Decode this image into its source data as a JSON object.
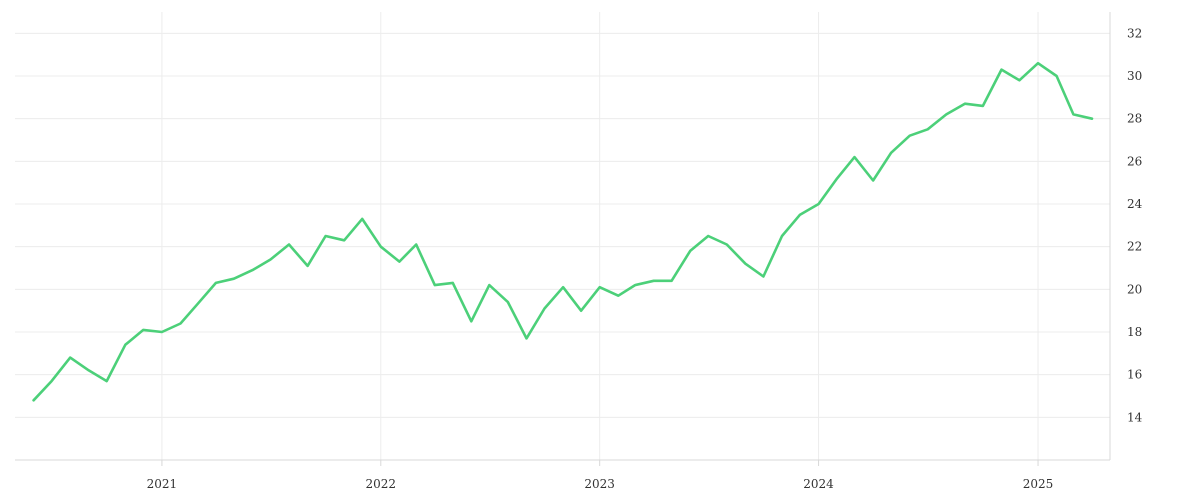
{
  "chart_data": {
    "type": "line",
    "title": "",
    "xlabel": "",
    "ylabel": "",
    "x_tick_labels": [
      "2021",
      "2022",
      "2023",
      "2024",
      "2025"
    ],
    "y_tick_labels": [
      "14",
      "16",
      "18",
      "20",
      "22",
      "24",
      "26",
      "28",
      "30",
      "32"
    ],
    "ylim": [
      12,
      33
    ],
    "xlim": [
      "2020-05-01",
      "2025-05-01"
    ],
    "y_axis_position": "right",
    "grid": true,
    "line_color": "#4cd079",
    "series": [
      {
        "x": [
          "2020-06-01",
          "2020-07-01",
          "2020-08-01",
          "2020-09-01",
          "2020-10-01",
          "2020-11-01",
          "2020-12-01",
          "2021-01-01",
          "2021-02-01",
          "2021-03-01",
          "2021-04-01",
          "2021-05-01",
          "2021-06-01",
          "2021-07-01",
          "2021-08-01",
          "2021-09-01",
          "2021-10-01",
          "2021-11-01",
          "2021-12-01",
          "2022-01-01",
          "2022-02-01",
          "2022-03-01",
          "2022-04-01",
          "2022-05-01",
          "2022-06-01",
          "2022-07-01",
          "2022-08-01",
          "2022-09-01",
          "2022-10-01",
          "2022-11-01",
          "2022-12-01",
          "2023-01-01",
          "2023-02-01",
          "2023-03-01",
          "2023-04-01",
          "2023-05-01",
          "2023-06-01",
          "2023-07-01",
          "2023-08-01",
          "2023-09-01",
          "2023-10-01",
          "2023-11-01",
          "2023-12-01",
          "2024-01-01",
          "2024-02-01",
          "2024-03-01",
          "2024-04-01",
          "2024-05-01",
          "2024-06-01",
          "2024-07-01",
          "2024-08-01",
          "2024-09-01",
          "2024-10-01",
          "2024-11-01",
          "2024-12-01",
          "2025-01-01",
          "2025-02-01",
          "2025-03-01",
          "2025-04-01"
        ],
        "values": [
          14.8,
          15.7,
          16.8,
          16.2,
          15.7,
          17.4,
          18.1,
          18.0,
          18.4,
          19.3,
          20.3,
          20.5,
          20.9,
          21.4,
          22.1,
          21.1,
          22.5,
          22.3,
          23.3,
          22.0,
          21.3,
          22.1,
          20.2,
          20.3,
          18.5,
          20.2,
          19.4,
          17.7,
          19.1,
          20.1,
          19.0,
          20.1,
          19.7,
          20.2,
          20.4,
          20.4,
          21.8,
          22.5,
          22.1,
          21.2,
          20.6,
          22.5,
          23.5,
          24.0,
          25.2,
          26.2,
          25.1,
          26.4,
          27.2,
          27.5,
          28.2,
          28.7,
          28.6,
          30.3,
          29.8,
          30.6,
          30.0,
          28.2,
          28.0
        ]
      }
    ]
  }
}
